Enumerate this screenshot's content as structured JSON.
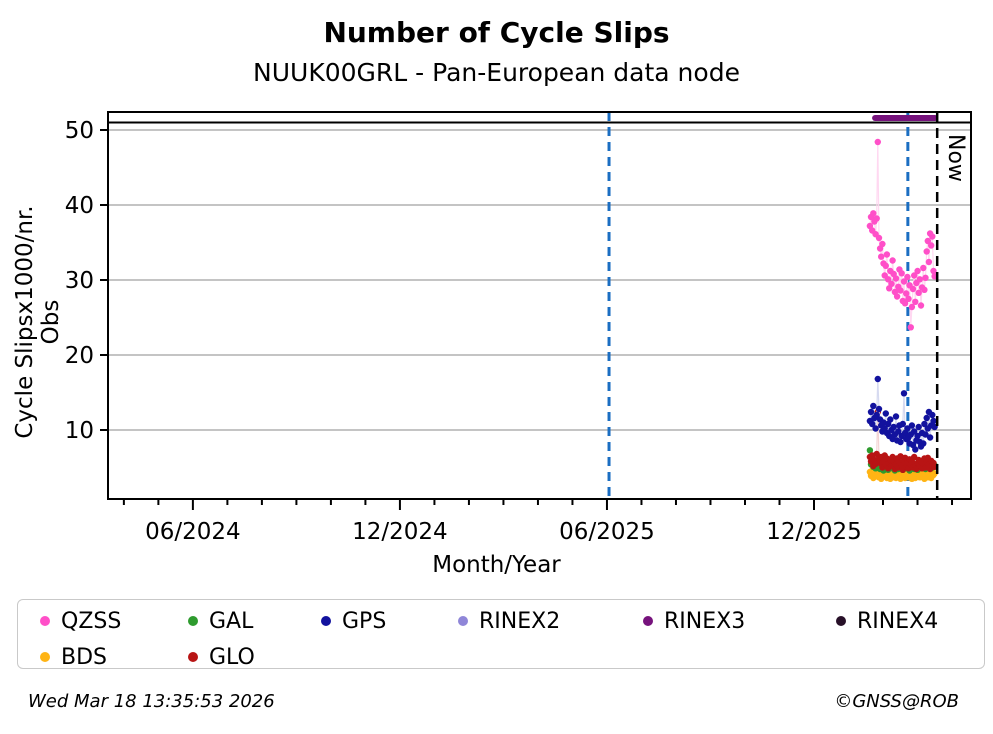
{
  "footer": {
    "timestamp": "Wed Mar 18 13:35:53 2026",
    "copyright": "©GNSS@ROB"
  },
  "chart_data": {
    "type": "scatter",
    "title": "Number of Cycle Slips",
    "subtitle": "NUUK00GRL - Pan-European data node",
    "xlabel": "Month/Year",
    "ylabel": "Cycle Slipsx1000/nr. Obs",
    "grid": "horizontal-gray",
    "grid_color": "#b0b0b0",
    "ylim": [
      0.8,
      52.4
    ],
    "y_ticks": [
      10,
      20,
      30,
      40,
      50
    ],
    "x_axis": {
      "unit": "months-since-2024-06",
      "range": [
        -2.46,
        22.55
      ],
      "major_ticks": [
        {
          "t": 0,
          "label": "06/2024"
        },
        {
          "t": 6,
          "label": "12/2024"
        },
        {
          "t": 12,
          "label": "06/2025"
        },
        {
          "t": 18,
          "label": "12/2025"
        }
      ],
      "minor_tick_every_months": 1
    },
    "reference_line": {
      "value": 51,
      "color": "#000000"
    },
    "event_lines": [
      {
        "t": 12.06,
        "approx_date": "2025-06-03",
        "color": "#1b6ec2",
        "style": "dashed"
      },
      {
        "t": 20.72,
        "approx_date": "2026-02-22",
        "color": "#1b6ec2",
        "style": "dashed"
      }
    ],
    "now_line": {
      "t": 21.57,
      "date": "2026-03-18",
      "label": "Now",
      "color": "#000000",
      "style": "dashed"
    },
    "rinex3_bar": {
      "t_start": 19.77,
      "t_end": 21.51,
      "value": 51.6,
      "color": "#76127c",
      "series": "RINEX3"
    },
    "data_window": {
      "start_date": "2026-01-19",
      "end_date": "2026-03-18",
      "cadence": "daily",
      "t_start": 19.62,
      "dt_per_day": 0.0329
    },
    "series": [
      {
        "name": "BDS",
        "color": "#ffb414",
        "line_color": "#ffeccb",
        "values": [
          4.4,
          3.9,
          4.6,
          3.6,
          4.2,
          3.8,
          4.5,
          4.0,
          3.7,
          4.3,
          3.5,
          4.1,
          4.6,
          3.8,
          4.2,
          3.6,
          4.4,
          3.9,
          3.5,
          4.1,
          4.5,
          3.7,
          4.0,
          3.6,
          4.3,
          3.8,
          4.1,
          3.5,
          4.4,
          3.9,
          4.2,
          3.6,
          4.0,
          4.5,
          3.7,
          4.1,
          3.8,
          3.5,
          4.3,
          4.0,
          3.6,
          4.4,
          3.9,
          4.1,
          3.7,
          4.5,
          3.8,
          4.2,
          3.5,
          4.0,
          4.3,
          3.7,
          4.1,
          3.9,
          3.6,
          4.4,
          4.0,
          4.2
        ]
      },
      {
        "name": "GAL",
        "color": "#2e9b2e",
        "line_color": "#d4ead4",
        "values": [
          7.3,
          5.4,
          5.8,
          5.1,
          5.6,
          4.9,
          5.3,
          6.0,
          5.5,
          4.8,
          5.2,
          5.7,
          4.6,
          5.4,
          5.9,
          5.0,
          4.7,
          5.5,
          5.2,
          5.8,
          4.9,
          5.3,
          4.6,
          5.6,
          5.1,
          4.8,
          5.4,
          5.0,
          5.7,
          4.7,
          5.2,
          5.5,
          4.9,
          5.3,
          5.8,
          4.6,
          5.1,
          5.6,
          5.0,
          4.8,
          5.4,
          5.2,
          4.7,
          5.5,
          5.9,
          5.1,
          4.9,
          5.3,
          5.6,
          4.8,
          5.2,
          5.0,
          5.7,
          5.4,
          4.9,
          5.5,
          5.1,
          5.3
        ]
      },
      {
        "name": "GLO",
        "color": "#b81414",
        "line_color": "#f2cfcf",
        "values": [
          6.4,
          5.8,
          6.6,
          5.2,
          6.0,
          5.5,
          6.8,
          12.4,
          6.2,
          5.6,
          6.4,
          5.0,
          5.8,
          6.6,
          5.4,
          6.2,
          4.9,
          5.6,
          6.0,
          5.2,
          6.4,
          5.8,
          4.8,
          5.4,
          6.2,
          5.0,
          5.7,
          6.5,
          5.3,
          4.7,
          5.9,
          6.3,
          5.1,
          5.6,
          4.9,
          6.1,
          5.4,
          5.8,
          5.0,
          6.4,
          5.2,
          4.8,
          5.6,
          6.0,
          5.3,
          5.8,
          4.9,
          5.5,
          6.2,
          5.0,
          5.7,
          6.3,
          5.4,
          4.8,
          5.9,
          5.2,
          5.6,
          5.1
        ]
      },
      {
        "name": "GPS",
        "color": "#12129e",
        "line_color": "#d2d6ee",
        "values": [
          11.2,
          12.4,
          10.8,
          13.2,
          11.6,
          10.2,
          12.0,
          16.8,
          12.8,
          11.4,
          10.6,
          9.8,
          11.0,
          10.2,
          12.2,
          9.6,
          10.8,
          9.2,
          11.4,
          10.0,
          8.8,
          10.4,
          9.4,
          11.8,
          8.6,
          9.8,
          10.6,
          8.4,
          9.2,
          10.8,
          14.9,
          9.6,
          8.8,
          10.2,
          9.0,
          8.2,
          9.4,
          10.6,
          8.0,
          9.8,
          7.4,
          8.6,
          9.2,
          10.4,
          8.4,
          7.8,
          9.6,
          8.2,
          10.8,
          9.4,
          11.6,
          10.2,
          12.4,
          9.0,
          10.6,
          12.0,
          11.2,
          10.4
        ]
      },
      {
        "name": "QZSS",
        "color": "#ff4fc8",
        "line_color": "#ffd4ef",
        "values": [
          37.2,
          38.4,
          36.6,
          38.9,
          37.8,
          36.1,
          38.2,
          48.4,
          35.6,
          34.2,
          33.1,
          34.8,
          32.2,
          30.6,
          31.9,
          33.4,
          30.1,
          28.9,
          31.2,
          29.5,
          32.6,
          30.8,
          28.4,
          30.2,
          27.8,
          29.1,
          31.4,
          28.6,
          30.9,
          27.2,
          29.8,
          26.9,
          28.2,
          30.4,
          27.5,
          29.3,
          23.7,
          26.4,
          28.8,
          30.6,
          27.1,
          29.6,
          31.2,
          28.3,
          30.1,
          26.6,
          29.0,
          31.6,
          28.7,
          30.3,
          33.8,
          35.2,
          32.4,
          36.2,
          34.6,
          35.8,
          31.2,
          30.5
        ]
      }
    ],
    "legend": {
      "position": "bottom",
      "items": [
        {
          "label": "QZSS",
          "color": "#ff4fc8"
        },
        {
          "label": "GAL",
          "color": "#2e9b2e"
        },
        {
          "label": "GPS",
          "color": "#12129e"
        },
        {
          "label": "RINEX2",
          "color": "#8f86d8"
        },
        {
          "label": "RINEX3",
          "color": "#76127c"
        },
        {
          "label": "RINEX4",
          "color": "#271028"
        },
        {
          "label": "BDS",
          "color": "#ffb414"
        },
        {
          "label": "GLO",
          "color": "#b81414"
        }
      ]
    }
  }
}
